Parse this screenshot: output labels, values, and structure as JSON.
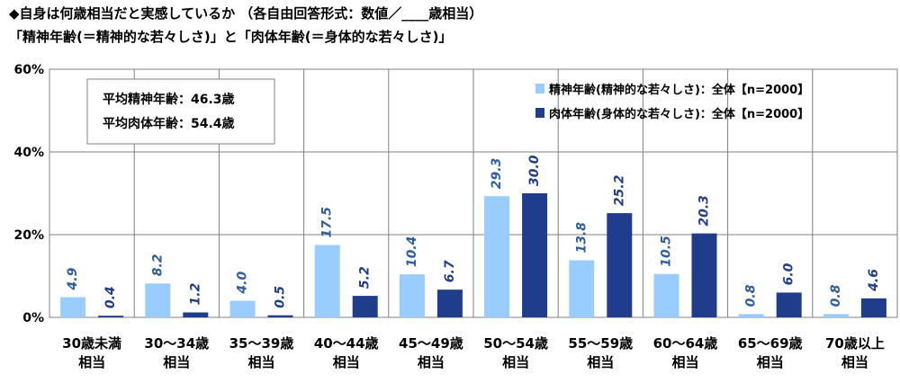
{
  "header": {
    "line1": "◆自身は何歳相当だと実感しているか （各自由回答形式：数値／____歳相当）",
    "line2": "「精神年齢(＝精神的な若々しさ)」と「肉体年齢(＝身体的な若々しさ)」"
  },
  "colors": {
    "mental": "#99CCFF",
    "physical": "#1F3D8A",
    "label_mental": "#2E5E9E",
    "label_physical": "#1F3D8A",
    "grid": "#808080"
  },
  "chart_data": {
    "type": "bar",
    "categories": [
      [
        "30歳未満",
        "相当"
      ],
      [
        "30～34歳",
        "相当"
      ],
      [
        "35～39歳",
        "相当"
      ],
      [
        "40～44歳",
        "相当"
      ],
      [
        "45～49歳",
        "相当"
      ],
      [
        "50～54歳",
        "相当"
      ],
      [
        "55～59歳",
        "相当"
      ],
      [
        "60～64歳",
        "相当"
      ],
      [
        "65～69歳",
        "相当"
      ],
      [
        "70歳以上",
        "相当"
      ]
    ],
    "series": [
      {
        "name": "精神年齢(精神的な若々しさ)：全体【n=2000】",
        "values": [
          4.9,
          8.2,
          4.0,
          17.5,
          10.4,
          29.3,
          13.8,
          10.5,
          0.8,
          0.8
        ]
      },
      {
        "name": "肉体年齢(身体的な若々しさ)：全体【n=2000】",
        "values": [
          0.4,
          1.2,
          0.5,
          5.2,
          6.7,
          30.0,
          25.2,
          20.3,
          6.0,
          4.6
        ]
      }
    ],
    "value_labels": [
      [
        "4.9",
        "8.2",
        "4.0",
        "17.5",
        "10.4",
        "29.3",
        "13.8",
        "10.5",
        "0.8",
        "0.8"
      ],
      [
        "0.4",
        "1.2",
        "0.5",
        "5.2",
        "6.7",
        "30.0",
        "25.2",
        "20.3",
        "6.0",
        "4.6"
      ]
    ],
    "ylim": [
      0,
      60
    ],
    "yticks": [
      "0%",
      "20%",
      "40%",
      "60%"
    ],
    "legend_position": "top-right",
    "annotation": [
      "平均精神年齢：46.3歳",
      "平均肉体年齢：54.4歳"
    ]
  }
}
